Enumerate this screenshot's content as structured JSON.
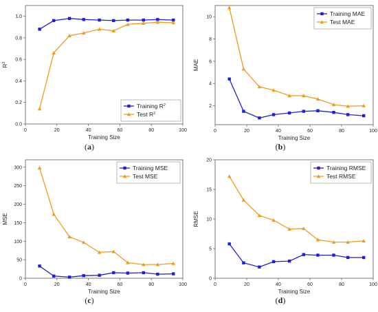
{
  "colors": {
    "training": "#1f1fd6",
    "test": "#f29a1c",
    "axis": "#555555"
  },
  "chart_data": [
    {
      "panel": "(a)",
      "type": "line",
      "xlabel": "Training Size",
      "ylabel": "R",
      "ylabel_sup": "2",
      "xlim": [
        0,
        100
      ],
      "ylim": [
        0,
        1.1
      ],
      "xticks": [
        0,
        20,
        40,
        60,
        80,
        100
      ],
      "yticks": [
        0,
        0.2,
        0.4,
        0.6,
        0.8,
        1.0
      ],
      "ytick_labels": [
        "0.0",
        "0.2",
        "0.4",
        "0.6",
        "0.8",
        "1.0"
      ],
      "legend_position": "bottom-right",
      "x": [
        9,
        18,
        28,
        37,
        47,
        56,
        65,
        75,
        84,
        94
      ],
      "series": [
        {
          "name": "Training R",
          "name_sup": "2",
          "color": "training",
          "marker": "square",
          "values": [
            0.88,
            0.96,
            0.98,
            0.97,
            0.965,
            0.96,
            0.965,
            0.965,
            0.97,
            0.965
          ]
        },
        {
          "name": "Test R",
          "name_sup": "2",
          "color": "test",
          "marker": "triangle",
          "values": [
            0.14,
            0.66,
            0.82,
            0.845,
            0.88,
            0.865,
            0.925,
            0.935,
            0.945,
            0.94
          ]
        }
      ]
    },
    {
      "panel": "(b)",
      "type": "line",
      "xlabel": "Training Size",
      "ylabel": "MAE",
      "xlim": [
        0,
        100
      ],
      "ylim": [
        0.3,
        11
      ],
      "xticks": [
        0,
        20,
        40,
        60,
        80,
        100
      ],
      "yticks": [
        2,
        4,
        6,
        8,
        10
      ],
      "ytick_labels": [
        "2",
        "4",
        "6",
        "8",
        "10"
      ],
      "legend_position": "top-right",
      "x": [
        9,
        18,
        28,
        37,
        47,
        56,
        65,
        75,
        84,
        94
      ],
      "series": [
        {
          "name": "Training MAE",
          "color": "training",
          "marker": "square",
          "values": [
            4.4,
            1.5,
            0.9,
            1.2,
            1.35,
            1.5,
            1.55,
            1.4,
            1.2,
            1.1
          ]
        },
        {
          "name": "Test MAE",
          "color": "test",
          "marker": "triangle",
          "values": [
            10.8,
            5.3,
            3.7,
            3.4,
            2.9,
            2.9,
            2.6,
            2.1,
            1.95,
            2.0
          ]
        }
      ]
    },
    {
      "panel": "(c)",
      "type": "line",
      "xlabel": "Training Size",
      "ylabel": "MSE",
      "xlim": [
        0,
        100
      ],
      "ylim": [
        0,
        320
      ],
      "xticks": [
        0,
        20,
        40,
        60,
        80,
        100
      ],
      "yticks": [
        0,
        50,
        100,
        150,
        200,
        250,
        300
      ],
      "ytick_labels": [
        "0",
        "50",
        "100",
        "150",
        "200",
        "250",
        "300"
      ],
      "legend_position": "top-right",
      "x": [
        9,
        18,
        28,
        37,
        47,
        56,
        65,
        75,
        84,
        94
      ],
      "series": [
        {
          "name": "Training MSE",
          "color": "training",
          "marker": "square",
          "values": [
            33,
            6,
            3,
            7,
            8,
            15,
            14,
            15,
            11,
            12
          ]
        },
        {
          "name": "Test MSE",
          "color": "test",
          "marker": "triangle",
          "values": [
            298,
            173,
            112,
            97,
            70,
            72,
            42,
            37,
            37,
            40
          ]
        }
      ]
    },
    {
      "panel": "(d)",
      "type": "line",
      "xlabel": "Training Size",
      "ylabel": "RMSE",
      "xlim": [
        0,
        100
      ],
      "ylim": [
        0,
        20
      ],
      "xticks": [
        0,
        20,
        40,
        60,
        80,
        100
      ],
      "yticks": [
        0,
        5,
        10,
        15,
        20
      ],
      "ytick_labels": [
        "0",
        "5",
        "10",
        "15",
        "20"
      ],
      "legend_position": "top-right",
      "x": [
        9,
        18,
        28,
        37,
        47,
        56,
        65,
        75,
        84,
        94
      ],
      "series": [
        {
          "name": "Training RMSE",
          "color": "training",
          "marker": "square",
          "values": [
            5.8,
            2.6,
            1.9,
            2.8,
            2.9,
            4.0,
            3.9,
            3.9,
            3.5,
            3.5
          ]
        },
        {
          "name": "Test RMSE",
          "color": "test",
          "marker": "triangle",
          "values": [
            17.2,
            13.2,
            10.6,
            9.8,
            8.3,
            8.4,
            6.5,
            6.1,
            6.1,
            6.3
          ]
        }
      ]
    }
  ]
}
